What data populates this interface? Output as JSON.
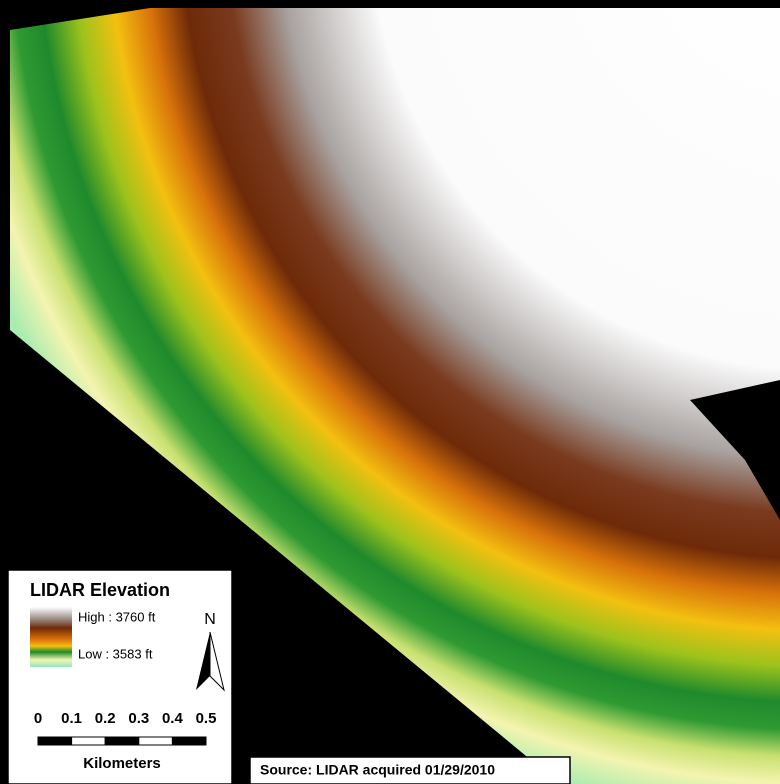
{
  "legend": {
    "title": "LIDAR Elevation",
    "high_label": "High : 3760 ft",
    "low_label": "Low : 3583 ft"
  },
  "north_arrow": "N",
  "scale_bar": {
    "ticks": [
      "0",
      "0.1",
      "0.2",
      "0.3",
      "0.4",
      "0.5"
    ],
    "unit": "Kilometers"
  },
  "source": "Source: LIDAR acquired 01/29/2010"
}
